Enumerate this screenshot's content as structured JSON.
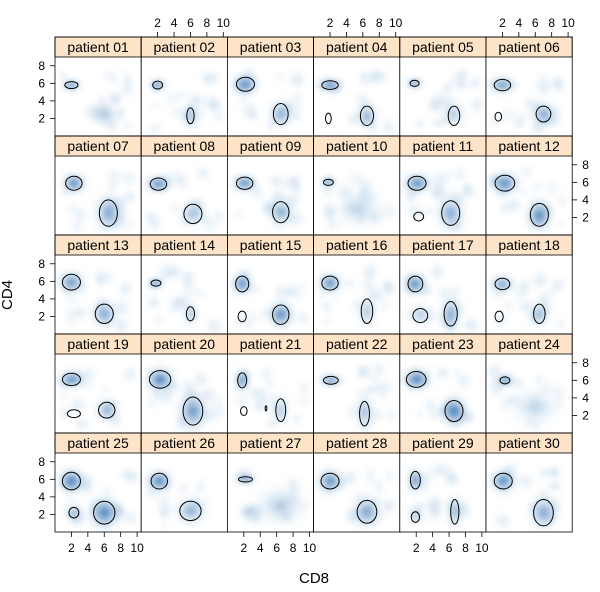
{
  "chart_data": {
    "type": "scatter",
    "description_kind": "lattice density plot with contour overlays",
    "xlabel": "CD8",
    "ylabel": "CD4",
    "xlim": [
      0,
      10.5
    ],
    "ylim": [
      0,
      9
    ],
    "x_ticks": [
      2,
      4,
      6,
      8,
      10
    ],
    "y_ticks": [
      2,
      4,
      6,
      8
    ],
    "layout": {
      "columns": 6,
      "rows": 5
    },
    "colors": {
      "density": "#2166ac",
      "strip": "#fde4c8",
      "contour": "#000000"
    },
    "panels": [
      {
        "label": "patient 01",
        "clusters": [
          [
            2,
            5.8,
            0.7,
            0.35,
            1.0
          ],
          [
            6,
            2.5,
            1.2,
            1.0,
            0.3
          ]
        ],
        "contours": [
          [
            2,
            5.8,
            0.8,
            0.4
          ]
        ]
      },
      {
        "label": "patient 02",
        "clusters": [
          [
            2,
            5.8,
            0.6,
            0.4,
            0.9
          ],
          [
            6,
            2.3,
            0.8,
            1.0,
            0.35
          ]
        ],
        "contours": [
          [
            2,
            5.8,
            0.6,
            0.45
          ],
          [
            6,
            2.3,
            0.45,
            0.9
          ]
        ]
      },
      {
        "label": "patient 03",
        "clusters": [
          [
            2.2,
            5.9,
            1.0,
            0.75,
            0.8
          ],
          [
            6.5,
            2.5,
            1.0,
            1.1,
            0.45
          ]
        ],
        "contours": [
          [
            2.2,
            5.9,
            1.1,
            0.8
          ],
          [
            6.5,
            2.5,
            0.9,
            1.2
          ]
        ]
      },
      {
        "label": "patient 04",
        "clusters": [
          [
            2,
            5.8,
            1.0,
            0.5,
            0.85
          ],
          [
            6.5,
            2.3,
            0.9,
            1.0,
            0.4
          ]
        ],
        "contours": [
          [
            2,
            5.8,
            1.0,
            0.5
          ],
          [
            6.5,
            2.3,
            0.8,
            1.1
          ],
          [
            1.8,
            2.0,
            0.35,
            0.6
          ]
        ]
      },
      {
        "label": "patient 05",
        "clusters": [
          [
            1.8,
            6.0,
            0.6,
            0.35,
            0.9
          ],
          [
            6.5,
            2.5,
            1.0,
            1.0,
            0.3
          ]
        ],
        "contours": [
          [
            1.8,
            6.0,
            0.55,
            0.35
          ],
          [
            6.6,
            2.3,
            0.7,
            1.1
          ]
        ]
      },
      {
        "label": "patient 06",
        "clusters": [
          [
            2,
            5.8,
            1.1,
            0.6,
            0.7
          ],
          [
            7,
            2.5,
            1.0,
            1.0,
            0.5
          ]
        ],
        "contours": [
          [
            2,
            5.8,
            1.0,
            0.65
          ],
          [
            7,
            2.5,
            0.9,
            0.9
          ],
          [
            1.5,
            2.2,
            0.4,
            0.5
          ]
        ]
      },
      {
        "label": "patient 07",
        "clusters": [
          [
            2.3,
            5.9,
            0.9,
            0.7,
            0.85
          ],
          [
            6.5,
            2.5,
            1.1,
            1.4,
            0.5
          ]
        ],
        "contours": [
          [
            2.3,
            5.9,
            1.0,
            0.8
          ],
          [
            6.5,
            2.5,
            1.1,
            1.5
          ]
        ]
      },
      {
        "label": "patient 08",
        "clusters": [
          [
            2.1,
            5.8,
            1.0,
            0.6,
            0.8
          ],
          [
            6.3,
            2.4,
            1.1,
            1.0,
            0.35
          ]
        ],
        "contours": [
          [
            2.1,
            5.8,
            1.0,
            0.7
          ],
          [
            6.3,
            2.4,
            1.1,
            1.1
          ]
        ]
      },
      {
        "label": "patient 09",
        "clusters": [
          [
            2.1,
            5.9,
            1.0,
            0.6,
            0.8
          ],
          [
            6.5,
            2.6,
            1.0,
            1.1,
            0.45
          ]
        ],
        "contours": [
          [
            2.1,
            5.9,
            1.0,
            0.7
          ],
          [
            6.5,
            2.6,
            1.0,
            1.2
          ]
        ]
      },
      {
        "label": "patient 10",
        "clusters": [
          [
            1.8,
            6.0,
            0.6,
            0.35,
            0.85
          ],
          [
            5.5,
            3.0,
            2.0,
            1.5,
            0.2
          ]
        ],
        "contours": [
          [
            1.8,
            6.0,
            0.6,
            0.35
          ]
        ]
      },
      {
        "label": "patient 11",
        "clusters": [
          [
            2.1,
            5.9,
            1.1,
            0.7,
            0.8
          ],
          [
            6.2,
            2.5,
            1.1,
            1.3,
            0.5
          ]
        ],
        "contours": [
          [
            2.1,
            5.9,
            1.1,
            0.8
          ],
          [
            6.2,
            2.5,
            1.1,
            1.4
          ],
          [
            2.3,
            2.1,
            0.6,
            0.5
          ]
        ]
      },
      {
        "label": "patient 12",
        "clusters": [
          [
            2.3,
            5.9,
            1.1,
            0.8,
            0.8
          ],
          [
            6.5,
            2.3,
            1.0,
            1.2,
            0.7
          ]
        ],
        "contours": [
          [
            2.3,
            5.9,
            1.2,
            0.9
          ],
          [
            6.5,
            2.3,
            1.1,
            1.3
          ]
        ]
      },
      {
        "label": "patient 13",
        "clusters": [
          [
            2.0,
            5.9,
            1.0,
            0.8,
            0.7
          ],
          [
            6.0,
            2.3,
            1.0,
            1.0,
            0.55
          ]
        ],
        "contours": [
          [
            2.0,
            5.9,
            1.1,
            0.9
          ],
          [
            6.0,
            2.3,
            1.1,
            1.1
          ]
        ]
      },
      {
        "label": "patient 14",
        "clusters": [
          [
            1.8,
            5.8,
            0.6,
            0.35,
            0.9
          ],
          [
            6.0,
            2.3,
            0.6,
            0.9,
            0.35
          ]
        ],
        "contours": [
          [
            1.8,
            5.8,
            0.6,
            0.35
          ],
          [
            6.0,
            2.3,
            0.5,
            0.8
          ]
        ]
      },
      {
        "label": "patient 15",
        "clusters": [
          [
            1.8,
            5.7,
            0.8,
            0.8,
            0.8
          ],
          [
            6.5,
            2.2,
            1.0,
            1.0,
            0.75
          ]
        ],
        "contours": [
          [
            1.8,
            5.7,
            0.8,
            0.9
          ],
          [
            6.5,
            2.2,
            1.0,
            1.1
          ],
          [
            1.8,
            2.0,
            0.5,
            0.6
          ]
        ]
      },
      {
        "label": "patient 16",
        "clusters": [
          [
            2.0,
            5.8,
            0.9,
            0.7,
            0.8
          ],
          [
            6.5,
            2.6,
            0.8,
            1.2,
            0.3
          ]
        ],
        "contours": [
          [
            2.0,
            5.8,
            1.0,
            0.8
          ],
          [
            6.5,
            2.6,
            0.7,
            1.4
          ]
        ]
      },
      {
        "label": "patient 17",
        "clusters": [
          [
            1.9,
            5.7,
            0.9,
            0.8,
            0.75
          ],
          [
            6.2,
            2.3,
            0.8,
            1.3,
            0.5
          ],
          [
            2.5,
            2.2,
            0.9,
            0.8,
            0.3
          ]
        ],
        "contours": [
          [
            1.9,
            5.7,
            0.9,
            0.9
          ],
          [
            6.2,
            2.3,
            0.8,
            1.4
          ],
          [
            2.5,
            2.1,
            0.9,
            0.8
          ]
        ]
      },
      {
        "label": "patient 18",
        "clusters": [
          [
            2.0,
            5.7,
            1.0,
            0.6,
            0.6
          ],
          [
            6.5,
            2.3,
            0.8,
            1.0,
            0.35
          ]
        ],
        "contours": [
          [
            2.0,
            5.7,
            0.9,
            0.65
          ],
          [
            6.5,
            2.3,
            0.7,
            1.1
          ],
          [
            1.6,
            2.0,
            0.5,
            0.6
          ]
        ]
      },
      {
        "label": "patient 19",
        "clusters": [
          [
            2.0,
            6.1,
            1.0,
            0.6,
            0.85
          ],
          [
            6.3,
            2.6,
            1.0,
            0.9,
            0.35
          ]
        ],
        "contours": [
          [
            2.0,
            6.1,
            1.1,
            0.7
          ],
          [
            6.3,
            2.6,
            1.0,
            0.9
          ],
          [
            2.3,
            2.2,
            0.8,
            0.45
          ]
        ]
      },
      {
        "label": "patient 20",
        "clusters": [
          [
            2.3,
            6.1,
            1.1,
            0.9,
            0.85
          ],
          [
            6.3,
            2.5,
            1.2,
            1.5,
            0.6
          ]
        ],
        "contours": [
          [
            2.3,
            6.1,
            1.3,
            1.0
          ],
          [
            6.3,
            2.5,
            1.2,
            1.6
          ]
        ]
      },
      {
        "label": "patient 21",
        "clusters": [
          [
            1.8,
            6.0,
            0.6,
            0.8,
            0.75
          ],
          [
            6.5,
            2.6,
            0.7,
            1.2,
            0.3
          ]
        ],
        "contours": [
          [
            1.8,
            6.0,
            0.55,
            0.85
          ],
          [
            6.5,
            2.6,
            0.6,
            1.3
          ],
          [
            2.0,
            2.5,
            0.4,
            0.5
          ],
          [
            4.7,
            2.8,
            0.1,
            0.3
          ]
        ]
      },
      {
        "label": "patient 22",
        "clusters": [
          [
            2.1,
            6.0,
            0.9,
            0.4,
            0.85
          ],
          [
            6.2,
            2.4,
            0.8,
            1.3,
            0.35
          ]
        ],
        "contours": [
          [
            2.1,
            6.0,
            0.9,
            0.45
          ],
          [
            6.2,
            2.2,
            0.6,
            1.4
          ]
        ]
      },
      {
        "label": "patient 23",
        "clusters": [
          [
            2.0,
            6.1,
            1.1,
            0.8,
            0.85
          ],
          [
            6.6,
            2.5,
            1.0,
            1.1,
            0.85
          ]
        ],
        "contours": [
          [
            2.0,
            6.1,
            1.2,
            0.9
          ],
          [
            6.6,
            2.5,
            1.1,
            1.2
          ]
        ]
      },
      {
        "label": "patient 24",
        "clusters": [
          [
            2.3,
            6.0,
            0.6,
            0.4,
            0.85
          ],
          [
            6.0,
            3.0,
            2.0,
            1.5,
            0.2
          ]
        ],
        "contours": [
          [
            2.3,
            6.0,
            0.6,
            0.4
          ]
        ]
      },
      {
        "label": "patient 25",
        "clusters": [
          [
            2.0,
            5.8,
            1.0,
            0.9,
            0.9
          ],
          [
            6.0,
            2.2,
            1.2,
            1.2,
            0.8
          ],
          [
            2.3,
            2.2,
            0.8,
            0.7,
            0.35
          ]
        ],
        "contours": [
          [
            2.0,
            5.8,
            1.1,
            1.0
          ],
          [
            6.0,
            2.2,
            1.3,
            1.3
          ],
          [
            2.3,
            2.2,
            0.6,
            0.6
          ]
        ]
      },
      {
        "label": "patient 26",
        "clusters": [
          [
            2.2,
            5.8,
            1.0,
            0.8,
            0.8
          ],
          [
            6.0,
            2.4,
            1.2,
            1.0,
            0.45
          ]
        ],
        "contours": [
          [
            2.2,
            5.8,
            1.0,
            0.9
          ],
          [
            6.0,
            2.4,
            1.3,
            1.1
          ]
        ]
      },
      {
        "label": "patient 27",
        "clusters": [
          [
            2.2,
            6.0,
            0.8,
            0.3,
            0.9
          ],
          [
            6.5,
            3.0,
            2.0,
            1.5,
            0.25
          ]
        ],
        "contours": [
          [
            2.2,
            6.0,
            0.85,
            0.3
          ]
        ]
      },
      {
        "label": "patient 28",
        "clusters": [
          [
            2.0,
            5.8,
            1.0,
            0.9,
            0.75
          ],
          [
            6.5,
            2.3,
            1.2,
            1.2,
            0.55
          ]
        ],
        "contours": [
          [
            2.0,
            5.8,
            1.1,
            0.9
          ],
          [
            6.5,
            2.3,
            1.2,
            1.3
          ]
        ]
      },
      {
        "label": "patient 29",
        "clusters": [
          [
            1.9,
            5.9,
            0.6,
            0.9,
            0.75
          ],
          [
            6.7,
            2.3,
            0.6,
            1.2,
            0.45
          ],
          [
            2.0,
            1.8,
            0.6,
            0.6,
            0.3
          ]
        ],
        "contours": [
          [
            1.9,
            5.9,
            0.6,
            1.0
          ],
          [
            6.7,
            2.3,
            0.5,
            1.4
          ],
          [
            1.9,
            1.7,
            0.5,
            0.6
          ]
        ]
      },
      {
        "label": "patient 30",
        "clusters": [
          [
            2.1,
            5.8,
            1.0,
            0.8,
            0.8
          ],
          [
            7.0,
            2.2,
            1.1,
            1.3,
            0.5
          ]
        ],
        "contours": [
          [
            2.1,
            5.8,
            1.1,
            0.9
          ],
          [
            7.0,
            2.2,
            1.2,
            1.5
          ]
        ]
      }
    ]
  }
}
